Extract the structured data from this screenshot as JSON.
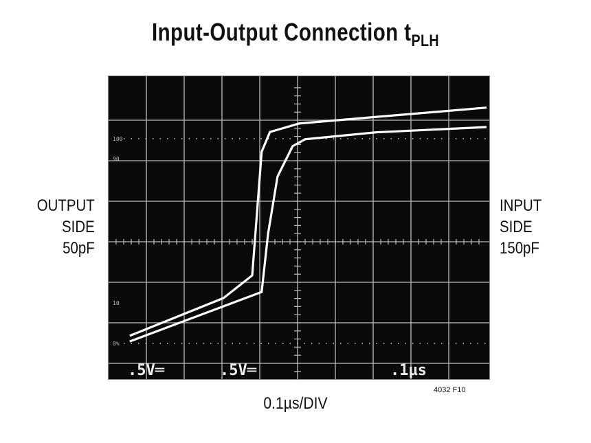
{
  "chart_data": {
    "type": "line",
    "title": "Input-Output Connection t",
    "title_subscript": "PLH",
    "xlabel": "0.1µs/DIV",
    "left_label": [
      "OUTPUT",
      "SIDE",
      "50pF"
    ],
    "right_label": [
      "INPUT",
      "SIDE",
      "150pF"
    ],
    "figure_id": "4032 F10",
    "screen_readouts": [
      ".5V═",
      ".5V═",
      ".1µs"
    ],
    "graticule_labels": [
      "100",
      "90",
      "10",
      "0%"
    ],
    "x_units": "divisions (0.1µs/div)",
    "y_units": "divisions from center (0.5V/div)",
    "xlim": [
      0,
      10
    ],
    "ylim": [
      -3.4,
      4
    ],
    "grid": true,
    "background": "#000000",
    "trace_color": "#ffffff",
    "series": [
      {
        "x": [
          0.56,
          3.04,
          3.8,
          4.05,
          4.27,
          5.05,
          7.07,
          10.0
        ],
        "y": [
          -2.32,
          -1.39,
          -0.83,
          2.22,
          2.71,
          2.92,
          3.08,
          3.31
        ]
      },
      {
        "x": [
          0.56,
          4.05,
          4.22,
          4.47,
          4.87,
          5.2,
          7.07,
          10.0
        ],
        "y": [
          -2.46,
          -1.24,
          0.2,
          1.61,
          2.36,
          2.53,
          2.7,
          2.83
        ]
      }
    ]
  }
}
